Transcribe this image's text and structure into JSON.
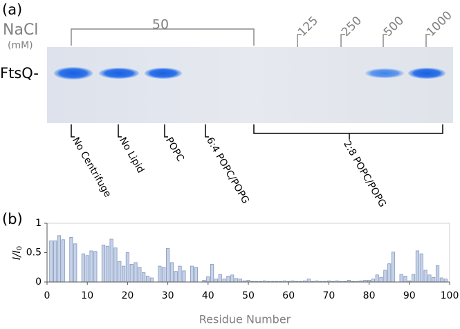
{
  "panel_a": {
    "label": "(a)",
    "salt_label": "NaCl",
    "salt_unit": "(mM)",
    "salt_concentrations": [
      "50",
      "125",
      "250",
      "500",
      "1000"
    ],
    "band_label": "FtsQ-",
    "lanes": [
      "No Centrifuge",
      "No Lipid",
      "POPC",
      "6:4 POPC/POPG",
      "2:8 POPC/POPG"
    ]
  },
  "chart_data": {
    "type": "bar",
    "panel_label": "(b)",
    "y_label": "I/I",
    "y_label_subscript": "0",
    "x_label": "Residue Number",
    "x": [
      1,
      2,
      3,
      4,
      5,
      6,
      7,
      8,
      9,
      10,
      11,
      12,
      13,
      14,
      15,
      16,
      17,
      18,
      19,
      20,
      21,
      22,
      23,
      24,
      25,
      26,
      27,
      28,
      29,
      30,
      31,
      32,
      33,
      34,
      35,
      36,
      37,
      38,
      39,
      40,
      41,
      42,
      43,
      44,
      45,
      46,
      47,
      48,
      49,
      50,
      51,
      52,
      53,
      54,
      55,
      56,
      57,
      58,
      59,
      60,
      61,
      62,
      63,
      64,
      65,
      66,
      67,
      68,
      69,
      70,
      71,
      72,
      73,
      74,
      75,
      76,
      77,
      78,
      79,
      80,
      81,
      82,
      83,
      84,
      85,
      86,
      87,
      88,
      89,
      90,
      91,
      92,
      93,
      94,
      95,
      96,
      97,
      98,
      99
    ],
    "values": [
      0.7,
      0.7,
      0.79,
      0.72,
      null,
      0.76,
      0.65,
      null,
      0.48,
      0.45,
      0.53,
      0.52,
      null,
      0.63,
      0.61,
      0.73,
      0.58,
      0.35,
      0.27,
      0.5,
      0.3,
      0.33,
      0.25,
      0.16,
      0.1,
      0.07,
      null,
      0.27,
      0.25,
      0.57,
      0.33,
      0.18,
      0.27,
      0.19,
      null,
      0.27,
      0.25,
      null,
      0.03,
      0.09,
      0.3,
      0.05,
      0.13,
      0.05,
      0.1,
      0.12,
      0.06,
      0.05,
      0.02,
      0.03,
      0.01,
      0.01,
      0.01,
      0.02,
      0.01,
      0.01,
      0.01,
      0.01,
      0.02,
      0.01,
      0.02,
      0.01,
      0.01,
      0.02,
      0.05,
      0.01,
      0.02,
      0.01,
      0.01,
      0.02,
      0.01,
      0.02,
      0.01,
      0.01,
      0.03,
      0.01,
      0.01,
      0.02,
      0.03,
      0.03,
      0.05,
      0.12,
      0.08,
      0.2,
      0.31,
      0.51,
      null,
      0.13,
      0.1,
      0.02,
      0.13,
      0.53,
      0.48,
      0.2,
      0.12,
      0.08,
      0.28,
      0.07,
      0.05
    ],
    "color": "#c5d2e8",
    "edge_color": "#8497bd",
    "xlim": [
      0,
      100
    ],
    "xticks": [
      0,
      10,
      20,
      30,
      40,
      50,
      60,
      70,
      80,
      90,
      100
    ],
    "ylim": [
      0,
      1
    ],
    "yticks": [
      0,
      0.5,
      1
    ]
  }
}
